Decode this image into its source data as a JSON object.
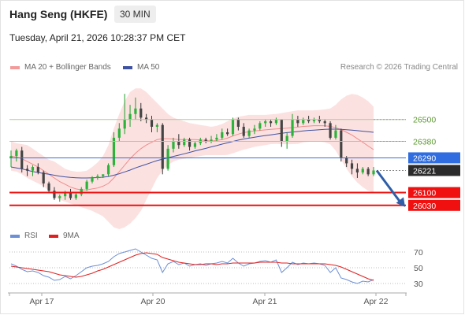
{
  "header": {
    "title": "Hang Seng (HKFE)",
    "timeframe": "30 MIN",
    "datetime": "Tuesday, April 21, 2026 10:28:37 PM CET"
  },
  "legend": {
    "ma20_label": "MA 20 + Bollinger Bands",
    "ma50_label": "MA 50",
    "credit": "Research © 2026 Trading Central",
    "colors": {
      "ma20": "#f29b9b",
      "ma50": "#3f51a3",
      "bands": "#fbd9d9"
    }
  },
  "rsi_legend": {
    "rsi_label": "RSI",
    "ma9_label": "9MA",
    "colors": {
      "rsi": "#6c8fd6",
      "ma9": "#e02020"
    }
  },
  "chart_data": [
    {
      "type": "candlestick",
      "title": "",
      "x_labels": [
        "Apr 17",
        "Apr 20",
        "Apr 21",
        "Apr 22"
      ],
      "y_range": [
        25930,
        26740
      ],
      "ohlc": [
        [
          26290,
          26330,
          26240,
          26300
        ],
        [
          26300,
          26340,
          26270,
          26330
        ],
        [
          26330,
          26350,
          26210,
          26230
        ],
        [
          26230,
          26250,
          26190,
          26220
        ],
        [
          26220,
          26250,
          26190,
          26240
        ],
        [
          26240,
          26260,
          26200,
          26210
        ],
        [
          26210,
          26220,
          26130,
          26150
        ],
        [
          26150,
          26160,
          26100,
          26110
        ],
        [
          26110,
          26130,
          26060,
          26070
        ],
        [
          26070,
          26090,
          26050,
          26080
        ],
        [
          26080,
          26110,
          26060,
          26100
        ],
        [
          26100,
          26120,
          26060,
          26070
        ],
        [
          26070,
          26100,
          26060,
          26090
        ],
        [
          26090,
          26130,
          26080,
          26120
        ],
        [
          26120,
          26170,
          26110,
          26160
        ],
        [
          26160,
          26190,
          26150,
          26180
        ],
        [
          26180,
          26200,
          26170,
          26190
        ],
        [
          26190,
          26200,
          26180,
          26200
        ],
        [
          26200,
          26260,
          26190,
          26250
        ],
        [
          26250,
          26430,
          26240,
          26400
        ],
        [
          26400,
          26480,
          26380,
          26450
        ],
        [
          26450,
          26640,
          26420,
          26500
        ],
        [
          26500,
          26580,
          26460,
          26530
        ],
        [
          26530,
          26620,
          26500,
          26560
        ],
        [
          26560,
          26590,
          26490,
          26510
        ],
        [
          26510,
          26530,
          26480,
          26500
        ],
        [
          26500,
          26520,
          26430,
          26460
        ],
        [
          26460,
          26480,
          26430,
          26470
        ],
        [
          26470,
          26480,
          26200,
          26230
        ],
        [
          26230,
          26360,
          26220,
          26340
        ],
        [
          26340,
          26400,
          26320,
          26380
        ],
        [
          26380,
          26420,
          26340,
          26360
        ],
        [
          26360,
          26400,
          26350,
          26390
        ],
        [
          26390,
          26400,
          26330,
          26350
        ],
        [
          26350,
          26380,
          26340,
          26370
        ],
        [
          26370,
          26400,
          26360,
          26390
        ],
        [
          26390,
          26400,
          26370,
          26380
        ],
        [
          26380,
          26410,
          26370,
          26390
        ],
        [
          26390,
          26420,
          26380,
          26400
        ],
        [
          26400,
          26450,
          26390,
          26430
        ],
        [
          26430,
          26450,
          26410,
          26420
        ],
        [
          26420,
          26510,
          26410,
          26500
        ],
        [
          26500,
          26510,
          26440,
          26460
        ],
        [
          26460,
          26480,
          26400,
          26410
        ],
        [
          26410,
          26450,
          26400,
          26440
        ],
        [
          26440,
          26470,
          26420,
          26450
        ],
        [
          26450,
          26490,
          26440,
          26480
        ],
        [
          26480,
          26500,
          26460,
          26490
        ],
        [
          26490,
          26500,
          26460,
          26480
        ],
        [
          26480,
          26510,
          26470,
          26500
        ],
        [
          26500,
          26500,
          26350,
          26380
        ],
        [
          26380,
          26430,
          26340,
          26410
        ],
        [
          26410,
          26530,
          26400,
          26500
        ],
        [
          26500,
          26520,
          26460,
          26480
        ],
        [
          26480,
          26510,
          26470,
          26500
        ],
        [
          26500,
          26520,
          26480,
          26490
        ],
        [
          26490,
          26510,
          26480,
          26500
        ],
        [
          26500,
          26520,
          26480,
          26490
        ],
        [
          26490,
          26500,
          26460,
          26480
        ],
        [
          26480,
          26490,
          26390,
          26400
        ],
        [
          26400,
          26470,
          26390,
          26440
        ],
        [
          26440,
          26450,
          26270,
          26290
        ],
        [
          26290,
          26300,
          26240,
          26260
        ],
        [
          26260,
          26280,
          26200,
          26230
        ],
        [
          26230,
          26260,
          26180,
          26210
        ],
        [
          26210,
          26240,
          26200,
          26230
        ],
        [
          26230,
          26240,
          26190,
          26200
        ],
        [
          26200,
          26240,
          26190,
          26221
        ]
      ],
      "ma20": [
        26300,
        26295,
        26285,
        26270,
        26255,
        26240,
        26220,
        26200,
        26180,
        26160,
        26145,
        26130,
        26120,
        26115,
        26115,
        26120,
        26125,
        26135,
        26150,
        26180,
        26215,
        26250,
        26285,
        26315,
        26340,
        26360,
        26375,
        26390,
        26395,
        26395,
        26393,
        26390,
        26390,
        26390,
        26390,
        26388,
        26385,
        26382,
        26385,
        26390,
        26398,
        26410,
        26420,
        26428,
        26433,
        26437,
        26440,
        26443,
        26446,
        26448,
        26450,
        26452,
        26455,
        26458,
        26462,
        26464,
        26466,
        26466,
        26465,
        26462,
        26455,
        26445,
        26430,
        26415,
        26395,
        26375,
        26355,
        26335
      ],
      "bb_upper": [
        26380,
        26370,
        26365,
        26360,
        26340,
        26320,
        26300,
        26280,
        26270,
        26250,
        26230,
        26220,
        26215,
        26215,
        26220,
        26240,
        26265,
        26300,
        26360,
        26450,
        26530,
        26600,
        26650,
        26670,
        26670,
        26650,
        26620,
        26590,
        26560,
        26530,
        26510,
        26500,
        26490,
        26480,
        26475,
        26470,
        26465,
        26460,
        26465,
        26475,
        26490,
        26505,
        26515,
        26520,
        26525,
        26525,
        26525,
        26525,
        26528,
        26530,
        26535,
        26540,
        26545,
        26550,
        26550,
        26550,
        26550,
        26552,
        26555,
        26560,
        26580,
        26610,
        26630,
        26640,
        26635,
        26620,
        26600,
        26570
      ],
      "bb_lower": [
        26220,
        26215,
        26200,
        26180,
        26165,
        26150,
        26135,
        26110,
        26080,
        26060,
        26050,
        26040,
        26030,
        26020,
        26010,
        26000,
        25985,
        25970,
        25940,
        25910,
        25900,
        25910,
        25930,
        25960,
        26000,
        26060,
        26120,
        26180,
        26220,
        26250,
        26270,
        26280,
        26285,
        26290,
        26295,
        26300,
        26305,
        26305,
        26305,
        26305,
        26306,
        26315,
        26325,
        26335,
        26342,
        26350,
        26355,
        26360,
        26365,
        26366,
        26365,
        26364,
        26365,
        26366,
        26374,
        26378,
        26382,
        26380,
        26375,
        26364,
        26330,
        26280,
        26230,
        26190,
        26155,
        26130,
        26110,
        26100
      ],
      "ma50": [
        26240,
        26235,
        26230,
        26222,
        26215,
        26210,
        26205,
        26200,
        26195,
        26190,
        26186,
        26183,
        26181,
        26180,
        26180,
        26181,
        26182,
        26184,
        26188,
        26195,
        26203,
        26213,
        26223,
        26235,
        26245,
        26255,
        26265,
        26275,
        26283,
        26290,
        26298,
        26305,
        26312,
        26320,
        26328,
        26335,
        26342,
        26350,
        26357,
        26365,
        26372,
        26380,
        26387,
        26393,
        26398,
        26403,
        26408,
        26412,
        26416,
        26420,
        26424,
        26428,
        26431,
        26434,
        26437,
        26440,
        26442,
        26444,
        26446,
        26447,
        26447,
        26446,
        26444,
        26442,
        26439,
        26436,
        26433,
        26430
      ],
      "levels": [
        {
          "value": 26500,
          "label": "26500",
          "kind": "resistance"
        },
        {
          "value": 26380,
          "label": "26380",
          "kind": "resistance"
        },
        {
          "value": 26290,
          "label": "26290",
          "kind": "pivot"
        },
        {
          "value": 26221,
          "label": "26221",
          "kind": "last"
        },
        {
          "value": 26100,
          "label": "26100",
          "kind": "support"
        },
        {
          "value": 26030,
          "label": "26030",
          "kind": "support"
        }
      ],
      "arrow": {
        "from_index": 67,
        "from_value": 26221,
        "to_value": 26030,
        "direction": "down"
      }
    },
    {
      "type": "line",
      "title": "",
      "y_range": [
        20,
        80
      ],
      "y_ticks": [
        70,
        50,
        30
      ],
      "rsi": [
        55,
        52,
        48,
        45,
        46,
        44,
        40,
        38,
        34,
        35,
        39,
        36,
        40,
        45,
        50,
        52,
        53,
        55,
        58,
        64,
        68,
        70,
        72,
        74,
        70,
        66,
        62,
        60,
        44,
        55,
        58,
        54,
        56,
        52,
        54,
        55,
        53,
        55,
        56,
        58,
        56,
        62,
        56,
        52,
        55,
        56,
        58,
        59,
        57,
        60,
        44,
        50,
        57,
        54,
        56,
        55,
        56,
        55,
        53,
        44,
        50,
        37,
        35,
        32,
        30,
        33,
        32,
        35
      ],
      "ma9": [
        52,
        51,
        50,
        49,
        48,
        47,
        46,
        45,
        43,
        41,
        40,
        39,
        38,
        39,
        41,
        43,
        46,
        48,
        51,
        54,
        57,
        60,
        63,
        66,
        68,
        69,
        68,
        67,
        63,
        61,
        59,
        57,
        56,
        55,
        54,
        54,
        55,
        55,
        54,
        55,
        55,
        56,
        56,
        56,
        56,
        56,
        57,
        57,
        57,
        57,
        56,
        56,
        55,
        55,
        55,
        55,
        55,
        55,
        55,
        54,
        53,
        51,
        48,
        45,
        42,
        39,
        36,
        34
      ]
    }
  ]
}
